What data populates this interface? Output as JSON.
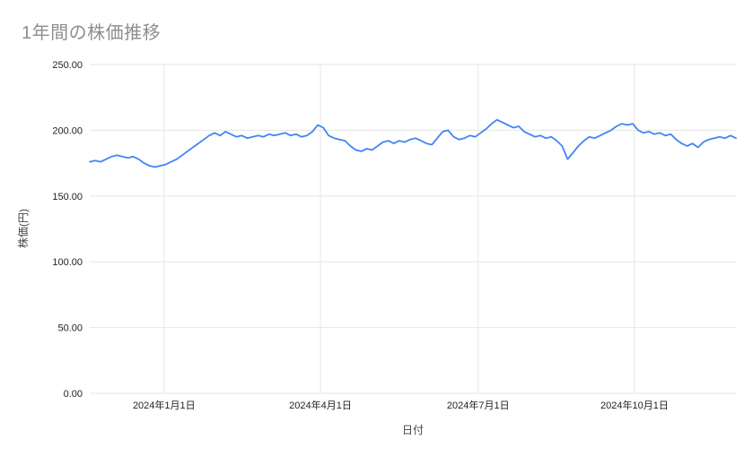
{
  "chart_data": {
    "type": "line",
    "title": "1年間の株価推移",
    "xlabel": "日付",
    "ylabel": "株価(円)",
    "ylim": [
      0,
      250
    ],
    "grid": true,
    "legend": "none",
    "y_ticks": {
      "values": [
        0,
        50,
        100,
        150,
        200,
        250
      ],
      "labels": [
        "0.00",
        "50.00",
        "100.00",
        "150.00",
        "200.00",
        "250.00"
      ]
    },
    "x_ticks": {
      "labels": [
        "2024年1月1日",
        "2024年4月1日",
        "2024年7月1日",
        "2024年10月1日"
      ],
      "fractions": [
        0.115,
        0.357,
        0.601,
        0.843
      ]
    },
    "series": [
      {
        "color": "#4285f4",
        "values": [
          176,
          177,
          176,
          178,
          180,
          181,
          180,
          179,
          180,
          178,
          175,
          173,
          172,
          173,
          174,
          176,
          178,
          181,
          184,
          187,
          190,
          193,
          196,
          198,
          196,
          199,
          197,
          195,
          196,
          194,
          195,
          196,
          195,
          197,
          196,
          197,
          198,
          196,
          197,
          195,
          196,
          199,
          204,
          202,
          196,
          194,
          193,
          192,
          188,
          185,
          184,
          186,
          185,
          188,
          191,
          192,
          190,
          192,
          191,
          193,
          194,
          192,
          190,
          189,
          194,
          199,
          200,
          195,
          193,
          194,
          196,
          195,
          198,
          201,
          205,
          208,
          206,
          204,
          202,
          203,
          199,
          197,
          195,
          196,
          194,
          195,
          192,
          188,
          178,
          183,
          188,
          192,
          195,
          194,
          196,
          198,
          200,
          203,
          205,
          204,
          205,
          200,
          198,
          199,
          197,
          198,
          196,
          197,
          193,
          190,
          188,
          190,
          187,
          191,
          193,
          194,
          195,
          194,
          196,
          194
        ]
      }
    ]
  },
  "colors": {
    "line": "#4285f4",
    "grid": "#e6e6e6",
    "title": "#8e8e8e",
    "tick": "#222222",
    "background": "#ffffff"
  }
}
